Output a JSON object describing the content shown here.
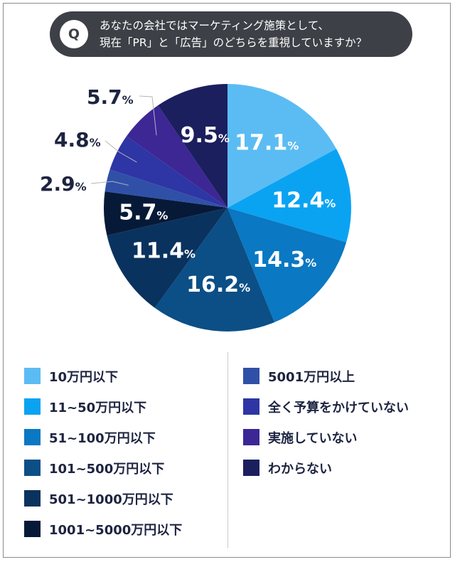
{
  "question": {
    "badge": "Q",
    "line1": "あなたの会社ではマーケティング施策として、",
    "line2": "現在「PR」と「広告」のどちらを重視していますか？"
  },
  "chart_data": {
    "type": "pie",
    "unit": "%",
    "slices": [
      {
        "label": "10万円以下",
        "value": 17.1,
        "color": "#5bbcf3"
      },
      {
        "label": "11~50万円以下",
        "value": 12.4,
        "color": "#0aa3f2"
      },
      {
        "label": "51~100万円以下",
        "value": 14.3,
        "color": "#0a78c2"
      },
      {
        "label": "101~500万円以下",
        "value": 16.2,
        "color": "#0b4f86"
      },
      {
        "label": "501~1000万円以下",
        "value": 11.4,
        "color": "#0a325e"
      },
      {
        "label": "1001~5000万円以下",
        "value": 5.7,
        "color": "#061a38"
      },
      {
        "label": "5001万円以上",
        "value": 2.9,
        "color": "#3050a8"
      },
      {
        "label": "全く予算をかけていない",
        "value": 4.8,
        "color": "#2e35a4"
      },
      {
        "label": "実施していない",
        "value": 5.7,
        "color": "#3c2795"
      },
      {
        "label": "わからない",
        "value": 9.5,
        "color": "#1b1f5e"
      }
    ]
  }
}
